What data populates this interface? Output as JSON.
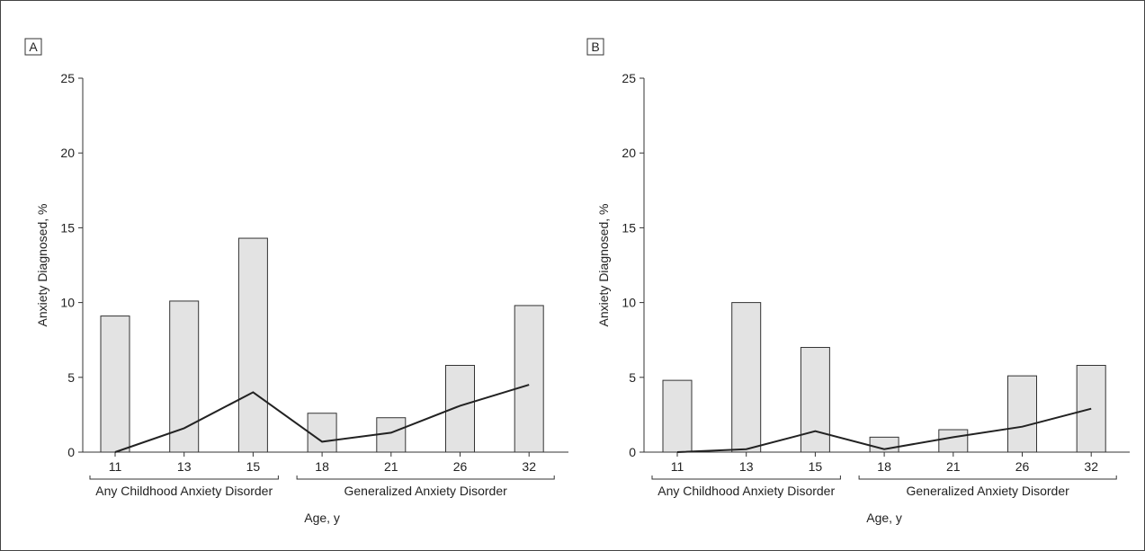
{
  "chart_data": [
    {
      "panel_label": "A",
      "type": "bar",
      "categories": [
        "11",
        "13",
        "15",
        "18",
        "21",
        "26",
        "32"
      ],
      "series": [
        {
          "kind": "bar",
          "values": [
            9.1,
            10.1,
            14.3,
            2.6,
            2.3,
            5.8,
            9.8
          ]
        },
        {
          "kind": "line",
          "values": [
            0.0,
            1.6,
            4.0,
            0.7,
            1.3,
            3.1,
            4.5
          ]
        }
      ],
      "xlabel": "Age, y",
      "ylabel": "Anxiety Diagnosed, %",
      "ylim": [
        0,
        25
      ],
      "yticks": [
        "0",
        "5",
        "10",
        "15",
        "20",
        "25"
      ],
      "groups": [
        {
          "label": "Any Childhood Anxiety Disorder",
          "categories": [
            "11",
            "13",
            "15"
          ]
        },
        {
          "label": "Generalized Anxiety Disorder",
          "categories": [
            "18",
            "21",
            "26",
            "32"
          ]
        }
      ],
      "grid": false
    },
    {
      "panel_label": "B",
      "type": "bar",
      "categories": [
        "11",
        "13",
        "15",
        "18",
        "21",
        "26",
        "32"
      ],
      "series": [
        {
          "kind": "bar",
          "values": [
            4.8,
            10.0,
            7.0,
            1.0,
            1.5,
            5.1,
            5.8
          ]
        },
        {
          "kind": "line",
          "values": [
            0.0,
            0.2,
            1.4,
            0.2,
            1.0,
            1.7,
            2.9
          ]
        }
      ],
      "xlabel": "Age, y",
      "ylabel": "Anxiety Diagnosed, %",
      "ylim": [
        0,
        25
      ],
      "yticks": [
        "0",
        "5",
        "10",
        "15",
        "20",
        "25"
      ],
      "groups": [
        {
          "label": "Any Childhood Anxiety Disorder",
          "categories": [
            "11",
            "13",
            "15"
          ]
        },
        {
          "label": "Generalized Anxiety Disorder",
          "categories": [
            "18",
            "21",
            "26",
            "32"
          ]
        }
      ],
      "grid": false
    }
  ],
  "colors": {
    "bar_fill": "#e3e3e3",
    "bar_stroke": "#333333",
    "line": "#222222",
    "axis": "#333333"
  }
}
